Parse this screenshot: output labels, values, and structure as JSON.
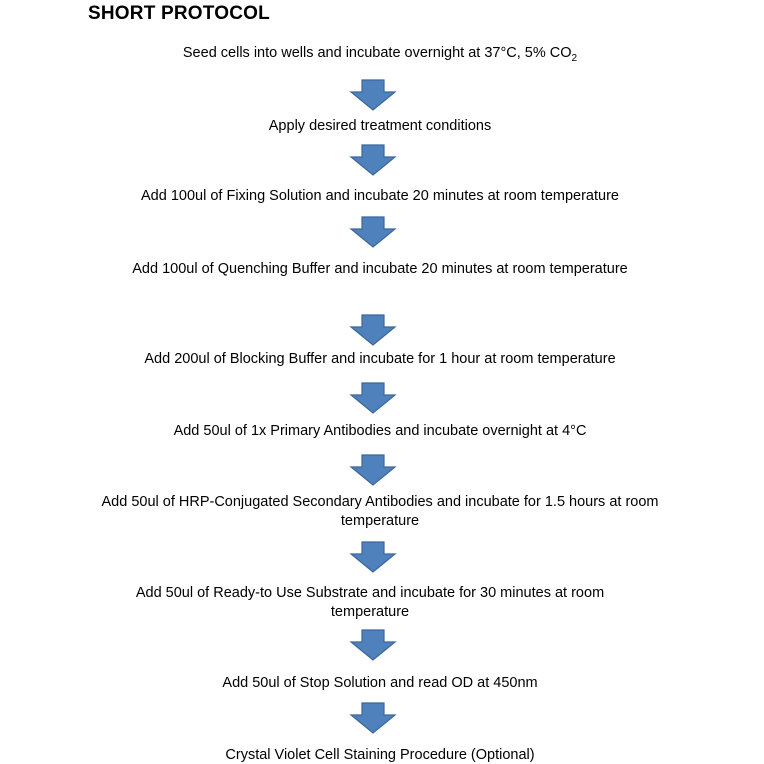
{
  "title": "SHORT PROTOCOL",
  "arrow_color": "#4f81bd",
  "steps": [
    {
      "text": "Seed cells into wells and incubate overnight at 37°C, 5% CO",
      "sub": "2"
    },
    {
      "text": "Apply desired treatment conditions"
    },
    {
      "text": "Add 100ul of Fixing Solution and incubate 20 minutes at room temperature"
    },
    {
      "text": "Add 100ul of Quenching Buffer and incubate 20 minutes at room temperature"
    },
    {
      "text": "Add 200ul of Blocking Buffer and incubate for 1 hour at room temperature"
    },
    {
      "text": "Add 50ul of 1x Primary Antibodies and incubate overnight at 4°C"
    },
    {
      "text": "Add 50ul of HRP-Conjugated Secondary Antibodies and incubate for 1.5 hours at room temperature"
    },
    {
      "text": "Add 50ul of Ready-to Use Substrate and incubate for 30 minutes at room temperature"
    },
    {
      "text": "Add 50ul of Stop Solution and read OD at 450nm"
    },
    {
      "text": "Crystal Violet Cell Staining Procedure (Optional)"
    }
  ]
}
